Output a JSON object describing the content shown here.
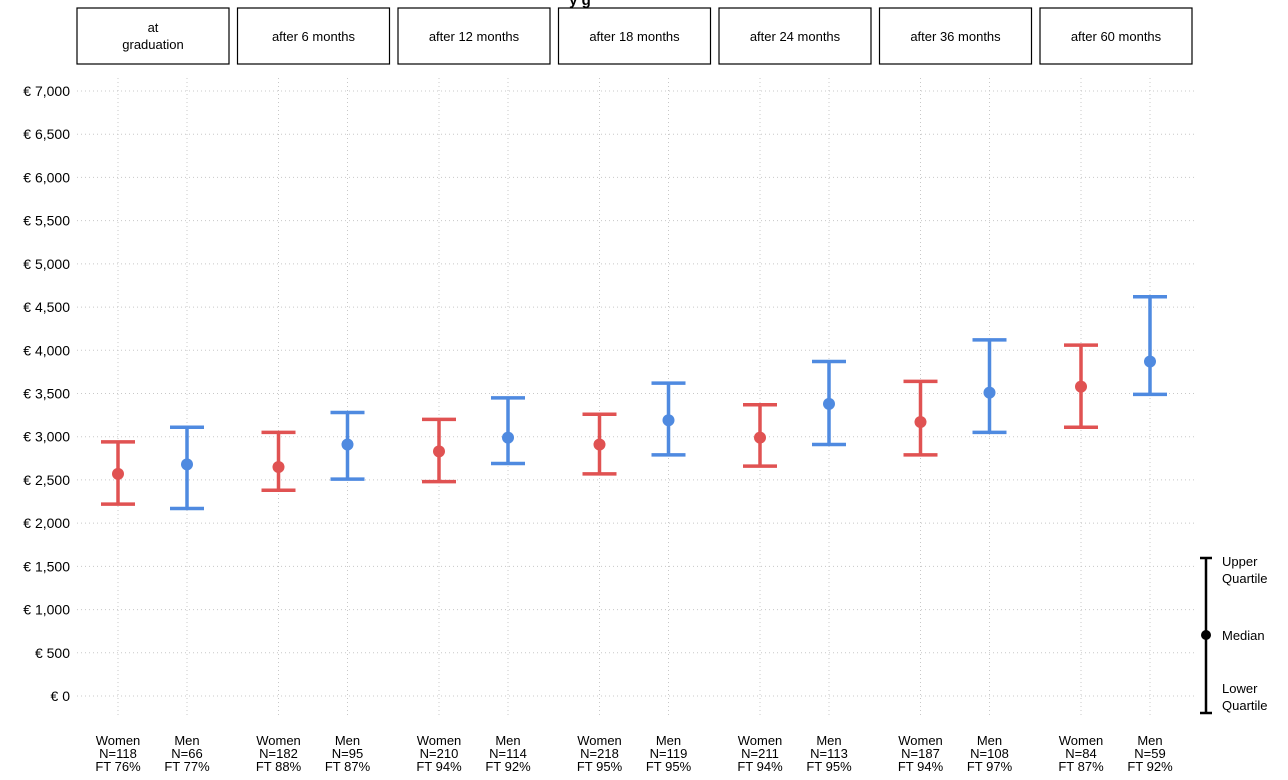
{
  "chart_data": {
    "type": "errorbar",
    "title_fragment": "y g",
    "y_tick_labels": [
      "€ 0",
      "€ 500",
      "€ 1,000",
      "€ 1,500",
      "€ 2,000",
      "€ 2,500",
      "€ 3,000",
      "€ 3,500",
      "€ 4,000",
      "€ 4,500",
      "€ 5,000",
      "€ 5,500",
      "€ 6,000",
      "€ 6,500",
      "€ 7,000"
    ],
    "y_ticks": [
      0,
      500,
      1000,
      1500,
      2000,
      2500,
      3000,
      3500,
      4000,
      4500,
      5000,
      5500,
      6000,
      6500,
      7000
    ],
    "ylim": [
      -100,
      7150
    ],
    "grid": true,
    "colors": {
      "Women": "#e05252",
      "Men": "#4f8ae0",
      "legend": "#000000"
    },
    "legend": {
      "position": "right",
      "upper": [
        "Upper",
        "Quartile"
      ],
      "median": "Median",
      "lower": [
        "Lower",
        "Quartile"
      ]
    },
    "panels": [
      {
        "label": [
          "at",
          "graduation"
        ],
        "groups": [
          {
            "sex": "Women",
            "n": "N=118",
            "ft": "FT 76%",
            "lower": 2220,
            "median": 2570,
            "upper": 2940
          },
          {
            "sex": "Men",
            "n": "N=66",
            "ft": "FT 77%",
            "lower": 2170,
            "median": 2680,
            "upper": 3110
          }
        ]
      },
      {
        "label": [
          "after 6 months"
        ],
        "groups": [
          {
            "sex": "Women",
            "n": "N=182",
            "ft": "FT 88%",
            "lower": 2380,
            "median": 2650,
            "upper": 3050
          },
          {
            "sex": "Men",
            "n": "N=95",
            "ft": "FT 87%",
            "lower": 2510,
            "median": 2910,
            "upper": 3280
          }
        ]
      },
      {
        "label": [
          "after 12 months"
        ],
        "groups": [
          {
            "sex": "Women",
            "n": "N=210",
            "ft": "FT 94%",
            "lower": 2480,
            "median": 2830,
            "upper": 3200
          },
          {
            "sex": "Men",
            "n": "N=114",
            "ft": "FT 92%",
            "lower": 2690,
            "median": 2990,
            "upper": 3450
          }
        ]
      },
      {
        "label": [
          "after 18 months"
        ],
        "groups": [
          {
            "sex": "Women",
            "n": "N=218",
            "ft": "FT 95%",
            "lower": 2570,
            "median": 2910,
            "upper": 3260
          },
          {
            "sex": "Men",
            "n": "N=119",
            "ft": "FT 95%",
            "lower": 2790,
            "median": 3190,
            "upper": 3620
          }
        ]
      },
      {
        "label": [
          "after 24 months"
        ],
        "groups": [
          {
            "sex": "Women",
            "n": "N=211",
            "ft": "FT 94%",
            "lower": 2660,
            "median": 2990,
            "upper": 3370
          },
          {
            "sex": "Men",
            "n": "N=113",
            "ft": "FT 95%",
            "lower": 2910,
            "median": 3380,
            "upper": 3870
          }
        ]
      },
      {
        "label": [
          "after 36 months"
        ],
        "groups": [
          {
            "sex": "Women",
            "n": "N=187",
            "ft": "FT 94%",
            "lower": 2790,
            "median": 3170,
            "upper": 3640
          },
          {
            "sex": "Men",
            "n": "N=108",
            "ft": "FT 97%",
            "lower": 3050,
            "median": 3510,
            "upper": 4120
          }
        ]
      },
      {
        "label": [
          "after 60 months"
        ],
        "groups": [
          {
            "sex": "Women",
            "n": "N=84",
            "ft": "FT 87%",
            "lower": 3110,
            "median": 3580,
            "upper": 4060
          },
          {
            "sex": "Men",
            "n": "N=59",
            "ft": "FT 92%",
            "lower": 3490,
            "median": 3870,
            "upper": 4620
          }
        ]
      }
    ]
  }
}
